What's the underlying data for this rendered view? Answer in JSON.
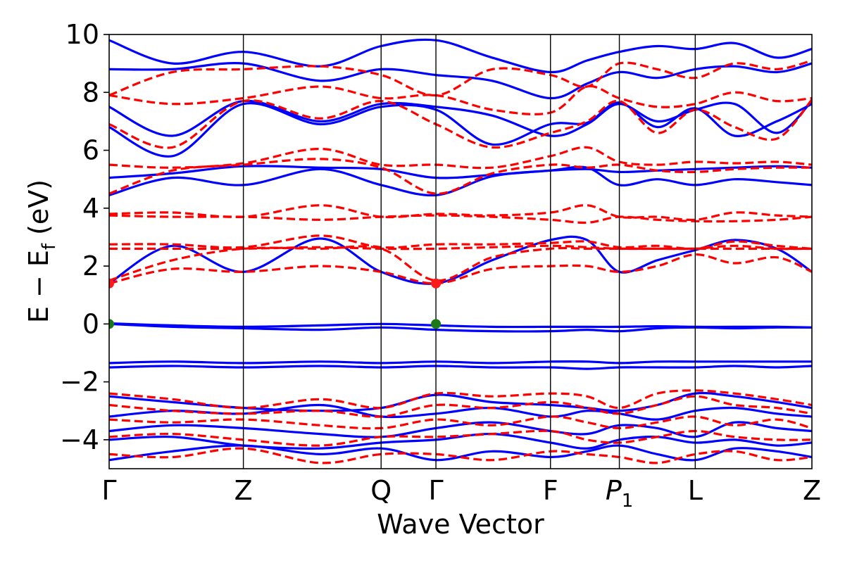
{
  "chart_data": {
    "type": "line",
    "title": "",
    "xlabel": "Wave Vector",
    "ylabel_parts": {
      "main": "E − E",
      "sub": "f",
      "unit": " (eV)"
    },
    "ylim": [
      -5,
      10
    ],
    "yticks": [
      {
        "value": 10,
        "label": "10"
      },
      {
        "value": 8,
        "label": "8"
      },
      {
        "value": 6,
        "label": "6"
      },
      {
        "value": 4,
        "label": "4"
      },
      {
        "value": 2,
        "label": "2"
      },
      {
        "value": 0,
        "label": "0"
      },
      {
        "value": -2,
        "label": "−2"
      },
      {
        "value": -4,
        "label": "−4"
      }
    ],
    "kpoints": [
      {
        "label": "Γ",
        "sub": "",
        "position": 0.0
      },
      {
        "label": "Z",
        "sub": "",
        "position": 0.191
      },
      {
        "label": "Q",
        "sub": "",
        "position": 0.387
      },
      {
        "label": "Γ",
        "sub": "",
        "position": 0.465
      },
      {
        "label": "F",
        "sub": "",
        "position": 0.628
      },
      {
        "label": "P",
        "sub": "1",
        "position": 0.726
      },
      {
        "label": "L",
        "sub": "",
        "position": 0.834
      },
      {
        "label": "Z",
        "sub": "",
        "position": 1.0
      }
    ],
    "grid": false,
    "colors": {
      "spin_up": "#0000ff",
      "spin_down": "#ff0000",
      "vbm_marker": "#1a7a1a",
      "cbm_marker": "#ff1a1a"
    },
    "series": [
      {
        "style": "solid",
        "color": "#0000ff",
        "bands": [
          [
            0.02,
            -0.05,
            -0.1,
            -0.05,
            0.0,
            -0.05,
            -0.1,
            -0.1,
            -0.1,
            -0.1,
            -0.08,
            -0.1,
            -0.1,
            -0.1,
            -0.12
          ],
          [
            0.0,
            -0.1,
            -0.15,
            -0.2,
            -0.12,
            -0.2,
            -0.25,
            -0.25,
            -0.2,
            -0.25,
            -0.15,
            -0.12,
            -0.15,
            -0.12,
            -0.12
          ],
          [
            -1.35,
            -1.3,
            -1.35,
            -1.3,
            -1.35,
            -1.3,
            -1.35,
            -1.3,
            -1.3,
            -1.35,
            -1.3,
            -1.3,
            -1.3,
            -1.3,
            -1.3
          ],
          [
            -1.5,
            -1.45,
            -1.5,
            -1.45,
            -1.5,
            -1.45,
            -1.5,
            -1.5,
            -1.55,
            -1.5,
            -1.5,
            -1.5,
            -1.45,
            -1.5,
            -1.45
          ],
          [
            1.4,
            2.7,
            1.8,
            2.95,
            1.8,
            1.4,
            2.2,
            2.9,
            2.9,
            1.8,
            2.2,
            2.55,
            2.9,
            2.6,
            1.8
          ],
          [
            4.45,
            5.05,
            4.8,
            5.35,
            4.8,
            4.45,
            5.1,
            5.3,
            5.4,
            4.8,
            5.0,
            4.8,
            5.0,
            4.9,
            4.8
          ],
          [
            5.05,
            5.2,
            5.45,
            5.4,
            5.35,
            5.05,
            5.15,
            5.3,
            5.35,
            5.25,
            5.3,
            5.35,
            5.4,
            5.45,
            5.4
          ],
          [
            6.8,
            5.8,
            7.6,
            6.9,
            7.5,
            7.4,
            6.2,
            6.9,
            6.95,
            7.65,
            6.8,
            7.45,
            6.5,
            7.0,
            7.6
          ],
          [
            7.5,
            6.5,
            7.7,
            7.0,
            7.6,
            7.5,
            7.2,
            6.5,
            6.9,
            7.6,
            7.0,
            7.4,
            7.6,
            6.6,
            7.7
          ],
          [
            8.8,
            8.8,
            9.0,
            8.4,
            8.8,
            8.6,
            8.4,
            7.8,
            8.3,
            8.7,
            8.5,
            8.8,
            8.9,
            8.7,
            9.0
          ],
          [
            9.8,
            9.0,
            9.4,
            8.9,
            9.6,
            9.8,
            9.2,
            8.7,
            9.1,
            9.4,
            9.6,
            9.5,
            9.7,
            9.2,
            9.5
          ],
          [
            -2.5,
            -2.7,
            -2.9,
            -3.0,
            -2.9,
            -2.45,
            -2.7,
            -2.8,
            -2.9,
            -3.0,
            -2.8,
            -2.4,
            -2.5,
            -2.7,
            -2.9
          ],
          [
            -3.2,
            -3.0,
            -3.1,
            -2.8,
            -3.2,
            -3.1,
            -2.9,
            -3.2,
            -3.0,
            -3.1,
            -3.3,
            -3.0,
            -2.9,
            -3.1,
            -3.2
          ],
          [
            -3.7,
            -3.5,
            -3.6,
            -3.8,
            -3.9,
            -3.6,
            -3.4,
            -3.7,
            -3.8,
            -3.5,
            -3.6,
            -3.9,
            -3.4,
            -3.6,
            -3.7
          ],
          [
            -4.0,
            -3.9,
            -4.2,
            -4.3,
            -4.1,
            -4.0,
            -3.8,
            -4.1,
            -4.3,
            -4.0,
            -3.9,
            -4.1,
            -4.0,
            -4.2,
            -4.1
          ],
          [
            -4.7,
            -4.4,
            -4.2,
            -4.5,
            -4.3,
            -4.7,
            -4.4,
            -4.6,
            -4.4,
            -4.2,
            -4.5,
            -4.7,
            -4.3,
            -4.4,
            -4.6
          ]
        ]
      },
      {
        "style": "dashed",
        "color": "#ff0000",
        "bands": [
          [
            1.4,
            1.9,
            1.8,
            2.0,
            1.8,
            1.4,
            1.9,
            2.0,
            2.0,
            1.8,
            2.0,
            2.4,
            2.1,
            2.3,
            1.8
          ],
          [
            1.5,
            2.2,
            2.6,
            2.6,
            2.6,
            1.5,
            2.3,
            2.6,
            2.6,
            2.6,
            2.6,
            2.6,
            2.6,
            2.6,
            2.6
          ],
          [
            2.6,
            2.6,
            2.6,
            2.65,
            2.6,
            2.6,
            2.65,
            2.7,
            2.65,
            2.6,
            2.6,
            2.6,
            2.7,
            2.6,
            2.6
          ],
          [
            2.75,
            2.75,
            2.65,
            3.05,
            2.65,
            2.75,
            2.75,
            2.8,
            2.85,
            2.65,
            2.7,
            2.6,
            2.85,
            2.7,
            2.6
          ],
          [
            3.75,
            3.7,
            3.7,
            3.6,
            3.7,
            3.75,
            3.7,
            3.6,
            3.5,
            3.7,
            3.6,
            3.55,
            3.55,
            3.6,
            3.7
          ],
          [
            3.8,
            3.85,
            3.7,
            4.1,
            3.7,
            3.8,
            3.75,
            3.85,
            4.1,
            3.7,
            3.7,
            3.6,
            3.85,
            3.75,
            3.7
          ],
          [
            4.5,
            5.3,
            5.5,
            5.7,
            5.4,
            4.5,
            5.2,
            5.5,
            5.4,
            5.5,
            5.3,
            5.25,
            5.35,
            5.4,
            5.4
          ],
          [
            5.5,
            5.4,
            5.55,
            6.05,
            5.5,
            5.5,
            5.4,
            5.8,
            6.1,
            5.6,
            5.5,
            5.6,
            5.55,
            5.6,
            5.5
          ],
          [
            6.9,
            6.1,
            7.7,
            7.1,
            7.7,
            6.9,
            6.1,
            6.6,
            7.0,
            7.7,
            6.6,
            7.4,
            6.8,
            6.4,
            7.75
          ],
          [
            7.9,
            7.6,
            7.8,
            8.2,
            7.8,
            7.9,
            7.4,
            7.3,
            8.2,
            7.8,
            7.5,
            7.6,
            8.0,
            7.7,
            7.8
          ],
          [
            7.9,
            8.7,
            8.8,
            8.9,
            8.6,
            7.9,
            8.8,
            8.6,
            8.2,
            9.0,
            8.8,
            8.5,
            9.0,
            8.8,
            9.1
          ],
          [
            -2.4,
            -2.6,
            -2.9,
            -2.6,
            -2.9,
            -2.4,
            -2.5,
            -2.4,
            -2.5,
            -2.9,
            -2.4,
            -2.3,
            -2.4,
            -2.6,
            -2.8
          ],
          [
            -2.8,
            -3.0,
            -3.1,
            -3.0,
            -3.2,
            -2.8,
            -2.9,
            -2.7,
            -2.9,
            -3.1,
            -2.8,
            -2.5,
            -2.8,
            -2.9,
            -3.1
          ],
          [
            -3.3,
            -3.4,
            -3.3,
            -3.5,
            -3.6,
            -3.3,
            -3.5,
            -3.2,
            -3.4,
            -3.6,
            -3.4,
            -3.2,
            -3.5,
            -3.3,
            -3.6
          ],
          [
            -3.9,
            -3.8,
            -4.0,
            -4.2,
            -3.9,
            -3.9,
            -3.8,
            -3.7,
            -4.0,
            -4.1,
            -3.9,
            -3.7,
            -3.9,
            -4.0,
            -4.0
          ],
          [
            -4.5,
            -4.6,
            -4.3,
            -4.8,
            -4.5,
            -4.5,
            -4.7,
            -4.4,
            -4.5,
            -4.6,
            -4.8,
            -4.5,
            -4.4,
            -4.7,
            -4.6
          ]
        ]
      }
    ],
    "sample_positions": [
      0.0,
      0.09,
      0.191,
      0.3,
      0.387,
      0.465,
      0.545,
      0.628,
      0.68,
      0.726,
      0.78,
      0.834,
      0.89,
      0.95,
      1.0
    ],
    "markers": [
      {
        "kind": "vbm",
        "position": 0.0,
        "energy": 0.0,
        "color": "#1a7a1a"
      },
      {
        "kind": "vbm",
        "position": 0.465,
        "energy": 0.0,
        "color": "#1a7a1a"
      },
      {
        "kind": "cbm",
        "position": 0.0,
        "energy": 1.4,
        "color": "#ff1a1a"
      },
      {
        "kind": "cbm",
        "position": 0.465,
        "energy": 1.4,
        "color": "#ff1a1a"
      }
    ]
  }
}
